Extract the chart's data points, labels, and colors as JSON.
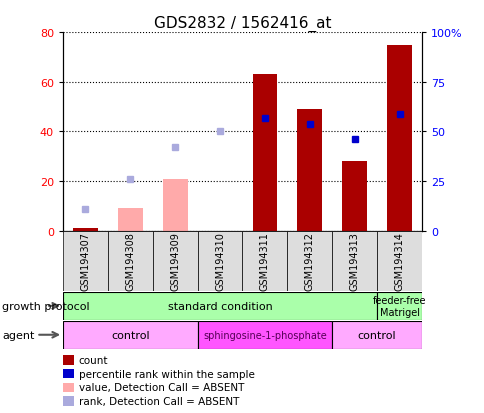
{
  "title": "GDS2832 / 1562416_at",
  "samples": [
    "GSM194307",
    "GSM194308",
    "GSM194309",
    "GSM194310",
    "GSM194311",
    "GSM194312",
    "GSM194313",
    "GSM194314"
  ],
  "count_values": [
    1,
    null,
    null,
    null,
    63,
    49,
    28,
    75
  ],
  "count_absent": [
    null,
    9,
    21,
    null,
    null,
    null,
    null,
    null
  ],
  "percentile_rank": [
    null,
    null,
    null,
    null,
    57,
    54,
    46,
    59
  ],
  "rank_absent": [
    11,
    26,
    42,
    50,
    null,
    null,
    null,
    null
  ],
  "left_ylim": [
    0,
    80
  ],
  "right_ylim": [
    0,
    100
  ],
  "left_yticks": [
    0,
    20,
    40,
    60,
    80
  ],
  "right_yticks": [
    0,
    25,
    50,
    75,
    100
  ],
  "right_yticklabels": [
    "0",
    "25",
    "50",
    "75",
    "100%"
  ],
  "bar_color_present": "#aa0000",
  "bar_color_absent": "#ffaaaa",
  "dot_color_present": "#0000cc",
  "dot_color_absent": "#aaaadd",
  "growth_protocol_color": "#aaffaa",
  "agent_control_color": "#ffaaff",
  "agent_sphingo_color": "#ff55ff",
  "sample_bg_color": "#dddddd",
  "legend_items": [
    {
      "label": "count",
      "color": "#aa0000"
    },
    {
      "label": "percentile rank within the sample",
      "color": "#0000cc"
    },
    {
      "label": "value, Detection Call = ABSENT",
      "color": "#ffaaaa"
    },
    {
      "label": "rank, Detection Call = ABSENT",
      "color": "#aaaadd"
    }
  ]
}
